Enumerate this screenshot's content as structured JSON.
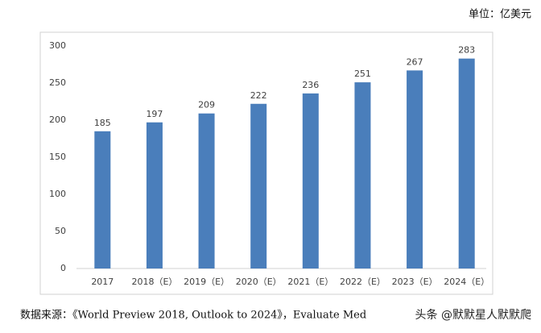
{
  "chart_data": {
    "type": "bar",
    "unit": "单位：亿美元",
    "categories": [
      "2017",
      "2018（E）",
      "2019（E）",
      "2020（E）",
      "2021（E）",
      "2022（E）",
      "2023（E）",
      "2024（E）"
    ],
    "values": [
      185,
      197,
      209,
      222,
      236,
      251,
      267,
      283
    ],
    "color": "#4a7ebb",
    "ylim": [
      0,
      300
    ],
    "yticks": [
      0,
      50,
      100,
      150,
      200,
      250,
      300
    ],
    "grid": false,
    "source": "数据来源：《World Preview 2018, Outlook to 2024》，Evaluate Med",
    "watermark": "头条 @默默星人默默爬"
  }
}
